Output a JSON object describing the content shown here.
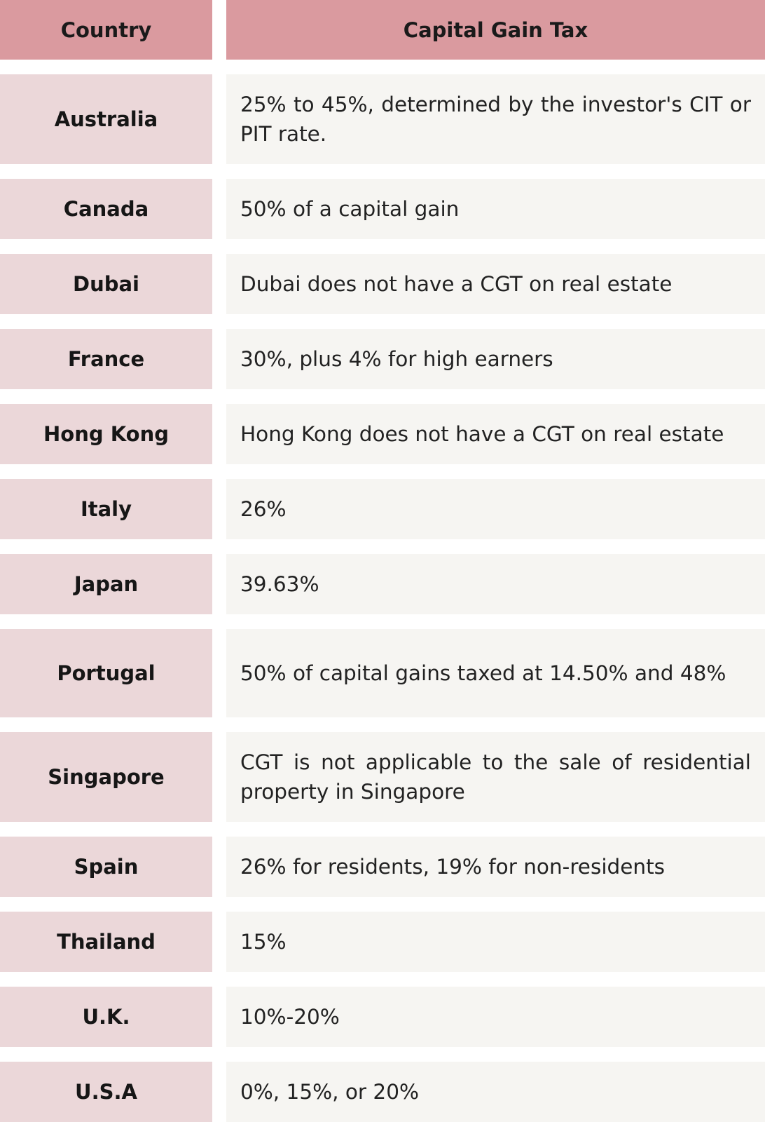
{
  "header": {
    "country_label": "Country",
    "tax_label": "Capital Gain Tax"
  },
  "rows": [
    {
      "country": "Australia",
      "tax": "25% to 45%, determined by the investor's CIT or PIT rate."
    },
    {
      "country": "Canada",
      "tax": "50% of a capital gain"
    },
    {
      "country": "Dubai",
      "tax": "Dubai does not have a CGT on real estate"
    },
    {
      "country": "France",
      "tax": "30%, plus 4% for high earners"
    },
    {
      "country": "Hong Kong",
      "tax": "Hong Kong does not have a CGT on real estate"
    },
    {
      "country": "Italy",
      "tax": "26%"
    },
    {
      "country": "Japan",
      "tax": "39.63%"
    },
    {
      "country": "Portugal",
      "tax": "50% of capital gains taxed at 14.50% and 48%"
    },
    {
      "country": "Singapore",
      "tax": "CGT is not applicable to the sale of residential property in Singapore"
    },
    {
      "country": "Spain",
      "tax": "26% for residents, 19% for non-residents"
    },
    {
      "country": "Thailand",
      "tax": "15%"
    },
    {
      "country": "U.K.",
      "tax": "10%-20%"
    },
    {
      "country": "U.S.A",
      "tax": "0%, 15%, or 20%"
    }
  ],
  "colors": {
    "header_bg": "#da9a9f",
    "country_bg": "#ebd7d9",
    "tax_bg": "#f6f5f2"
  }
}
